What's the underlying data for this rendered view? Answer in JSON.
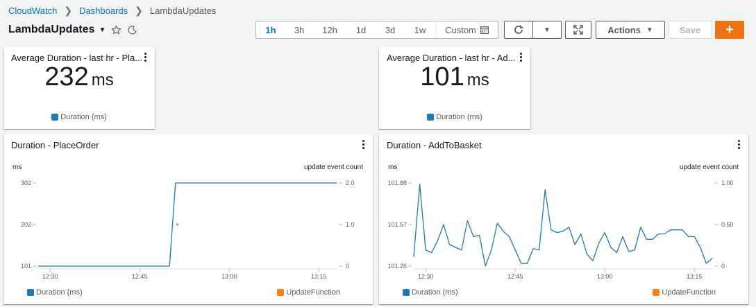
{
  "breadcrumb": {
    "root": "CloudWatch",
    "section": "Dashboards",
    "current": "LambdaUpdates"
  },
  "dashboard": {
    "title": "LambdaUpdates"
  },
  "time_ranges": [
    {
      "label": "1h",
      "active": true
    },
    {
      "label": "3h",
      "active": false
    },
    {
      "label": "12h",
      "active": false
    },
    {
      "label": "1d",
      "active": false
    },
    {
      "label": "3d",
      "active": false
    },
    {
      "label": "1w",
      "active": false
    }
  ],
  "custom_label": "Custom",
  "toolbar": {
    "actions_label": "Actions",
    "save_label": "Save",
    "add_label": "+"
  },
  "colors": {
    "series_blue": "#1f77b4",
    "series_orange": "#ff7f0e",
    "accent": "#0073bb",
    "primary": "#ec7211"
  },
  "single_values": [
    {
      "title": "Average Duration - last hr - Pla...",
      "value": "232",
      "unit": "ms",
      "legend": "Duration (ms)"
    },
    {
      "title": "Average Duration - last hr - Ad...",
      "value": "101",
      "unit": "ms",
      "legend": "Duration (ms)"
    }
  ],
  "charts": [
    {
      "title": "Duration - PlaceOrder",
      "left_unit": "ms",
      "right_unit": "update event count",
      "left_ticks": [
        "302",
        "202",
        "101"
      ],
      "right_ticks": [
        "2.0",
        "1.0",
        "0"
      ],
      "x_ticks": [
        "12:30",
        "12:45",
        "13:00",
        "13:15"
      ],
      "legend_left": "Duration (ms)",
      "legend_right": "UpdateFunction"
    },
    {
      "title": "Duration - AddToBasket",
      "left_unit": "ms",
      "right_unit": "update event count",
      "left_ticks": [
        "101.88",
        "101.57",
        "101.26"
      ],
      "right_ticks": [
        "1.00",
        "0.50",
        "0"
      ],
      "x_ticks": [
        "12:30",
        "12:45",
        "13:00",
        "13:15"
      ],
      "legend_left": "Duration (ms)",
      "legend_right": "UpdateFunction"
    }
  ],
  "chart_data": [
    {
      "type": "line",
      "title": "Duration - PlaceOrder",
      "x_unit": "minutes since 12:30",
      "ylim": [
        101,
        302
      ],
      "y2lim": [
        0,
        2
      ],
      "x_ticks": [
        "12:30",
        "12:45",
        "13:00",
        "13:15"
      ],
      "series": [
        {
          "name": "Duration (ms)",
          "axis": "left",
          "x": [
            -2,
            3,
            20,
            21,
            48
          ],
          "y": [
            101,
            101,
            101,
            302,
            302
          ]
        },
        {
          "name": "UpdateFunction",
          "axis": "right",
          "type": "scatter",
          "x": [
            21.3
          ],
          "y": [
            1
          ]
        }
      ]
    },
    {
      "type": "line",
      "title": "Duration - AddToBasket",
      "x_unit": "minutes since 12:30",
      "ylim": [
        101.26,
        101.88
      ],
      "y2lim": [
        0,
        1
      ],
      "x_ticks": [
        "12:30",
        "12:45",
        "13:00",
        "13:15"
      ],
      "series": [
        {
          "name": "Duration (ms)",
          "axis": "left",
          "x": [
            -2,
            -1,
            0,
            1,
            2,
            3,
            4,
            5,
            6,
            7,
            8,
            9,
            10,
            11,
            12,
            13,
            14,
            15,
            16,
            17,
            18,
            19,
            20,
            21,
            22,
            23,
            24,
            25,
            26,
            27,
            28,
            29,
            30,
            31,
            32,
            33,
            34,
            35,
            36,
            37,
            38,
            39,
            40,
            41,
            42,
            43,
            44,
            45,
            46,
            47,
            48
          ],
          "y": [
            101.33,
            101.87,
            101.38,
            101.36,
            101.45,
            101.57,
            101.42,
            101.4,
            101.38,
            101.6,
            101.48,
            101.49,
            101.26,
            101.38,
            101.58,
            101.52,
            101.48,
            101.38,
            101.28,
            101.28,
            101.39,
            101.38,
            101.83,
            101.53,
            101.51,
            101.52,
            101.55,
            101.42,
            101.5,
            101.35,
            101.3,
            101.43,
            101.51,
            101.4,
            101.36,
            101.48,
            101.37,
            101.38,
            101.55,
            101.46,
            101.46,
            101.5,
            101.5,
            101.53,
            101.53,
            101.53,
            101.48,
            101.48,
            101.4,
            101.28,
            101.32
          ]
        }
      ]
    }
  ]
}
